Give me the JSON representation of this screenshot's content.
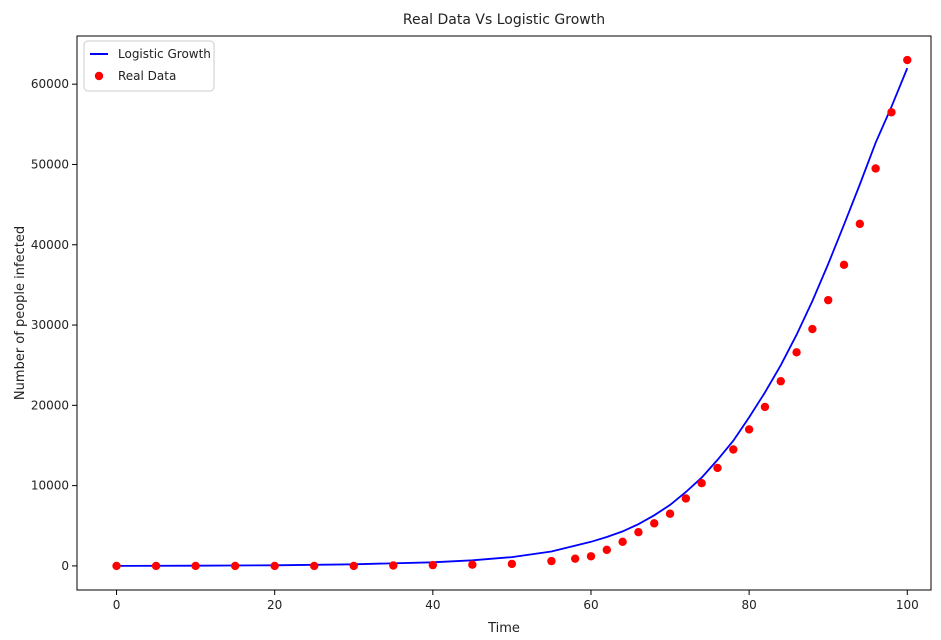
{
  "chart_data": {
    "type": "line",
    "title": "Real Data Vs Logistic Growth",
    "xlabel": "Time",
    "ylabel": "Number of people infected",
    "xlim": [
      -5,
      103
    ],
    "ylim": [
      -3000,
      66000
    ],
    "xticks": [
      0,
      20,
      40,
      60,
      80,
      100
    ],
    "yticks": [
      0,
      10000,
      20000,
      30000,
      40000,
      50000,
      60000
    ],
    "grid": false,
    "legend_position": "top-left",
    "series": [
      {
        "name": "Logistic Growth",
        "kind": "line",
        "color": "#0000ff",
        "x": [
          0,
          10,
          20,
          30,
          40,
          45,
          50,
          55,
          60,
          62,
          64,
          66,
          68,
          70,
          72,
          74,
          76,
          78,
          80,
          82,
          84,
          86,
          88,
          90,
          92,
          94,
          96,
          98,
          100
        ],
        "y": [
          0,
          30,
          80,
          200,
          450,
          700,
          1100,
          1800,
          3000,
          3600,
          4300,
          5200,
          6300,
          7600,
          9200,
          11000,
          13200,
          15600,
          18500,
          21600,
          25000,
          28800,
          33000,
          37600,
          42500,
          47500,
          52700,
          57200,
          62000
        ]
      },
      {
        "name": "Real Data",
        "kind": "scatter",
        "color": "#ff0000",
        "x": [
          0,
          5,
          10,
          15,
          20,
          25,
          30,
          35,
          40,
          45,
          50,
          55,
          58,
          60,
          62,
          64,
          66,
          68,
          70,
          72,
          74,
          76,
          78,
          80,
          82,
          84,
          86,
          88,
          90,
          92,
          94,
          96,
          98,
          100
        ],
        "y": [
          0,
          0,
          0,
          0,
          0,
          0,
          0,
          50,
          100,
          150,
          250,
          600,
          900,
          1200,
          2000,
          3000,
          4200,
          5300,
          6500,
          8400,
          10300,
          12200,
          14500,
          17000,
          19800,
          23000,
          26600,
          29500,
          33100,
          37500,
          42600,
          49500,
          56500,
          63000
        ]
      }
    ]
  }
}
